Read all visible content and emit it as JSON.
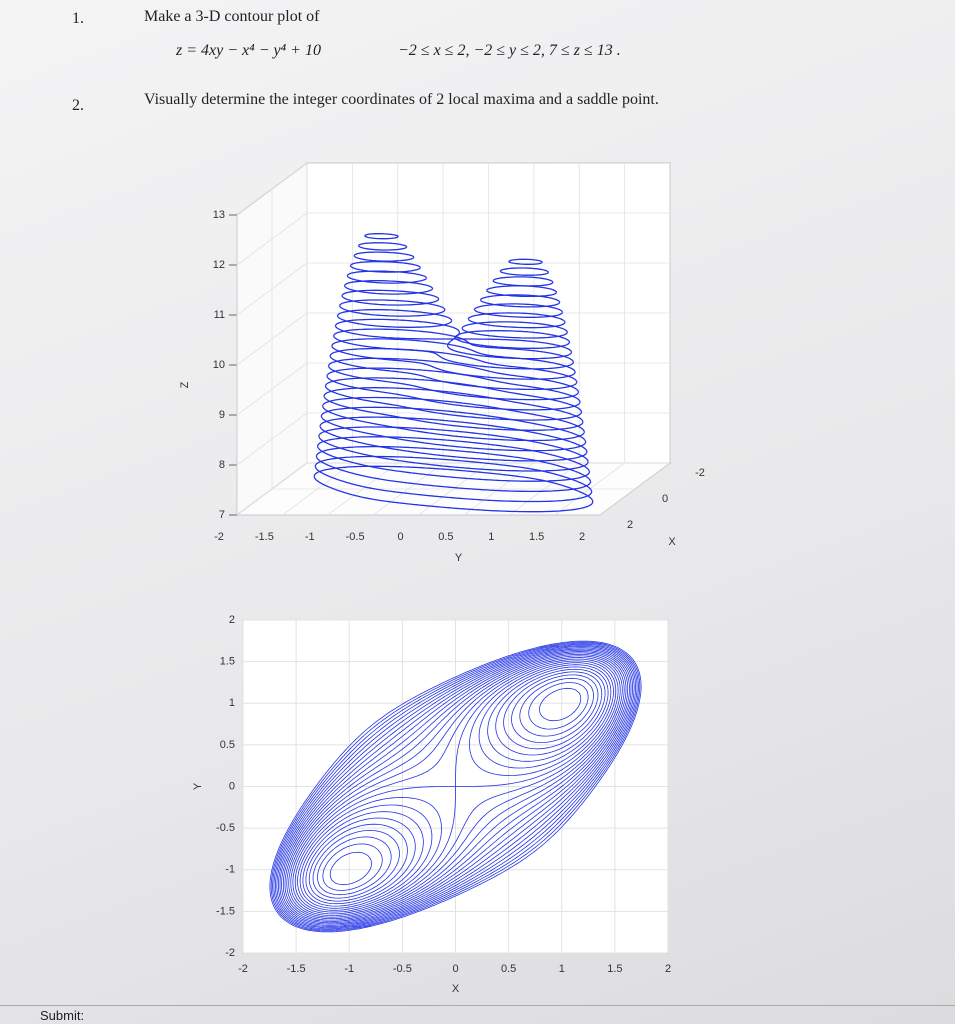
{
  "problems": [
    {
      "number": "1.",
      "text": "Make a 3-D contour plot of",
      "equation": "z = 4xy − x⁴ − y⁴ + 10",
      "domain": "−2 ≤ x ≤ 2, −2 ≤ y ≤ 2, 7 ≤ z ≤ 13 ."
    },
    {
      "number": "2.",
      "text": "Visually determine the integer coordinates of 2 local maxima and a saddle point."
    }
  ],
  "charts": [
    {
      "type": "contour3d",
      "color": "#2233e6",
      "levels": [
        7,
        7.2,
        7.4,
        7.6,
        7.8,
        8,
        8.2,
        8.4,
        8.6,
        8.8,
        9,
        9.2,
        9.4,
        9.6,
        9.8,
        10,
        10.2,
        10.4,
        10.6,
        10.8,
        11,
        11.2,
        11.4,
        11.6,
        11.8
      ],
      "xlim": [
        -2,
        2
      ],
      "ylim": [
        -2,
        2
      ],
      "zlim": [
        7,
        13
      ],
      "xticks": [
        -2,
        0,
        2
      ],
      "yticks": [
        -2,
        -1.5,
        -1,
        -0.5,
        0,
        0.5,
        1,
        1.5,
        2
      ],
      "zticks": [
        7,
        8,
        9,
        10,
        11,
        12,
        13
      ],
      "xlabel": "X",
      "ylabel": "Y",
      "zlabel": "Z"
    },
    {
      "type": "contour",
      "color": "#2233e6",
      "levels": [
        7,
        7.2,
        7.4,
        7.6,
        7.8,
        8,
        8.2,
        8.4,
        8.6,
        8.8,
        9,
        9.2,
        9.4,
        9.6,
        9.8,
        10,
        10.2,
        10.4,
        10.6,
        10.8,
        11,
        11.2,
        11.4,
        11.6,
        11.8
      ],
      "xlim": [
        -2,
        2
      ],
      "ylim": [
        -2,
        2
      ],
      "xticks": [
        -2,
        -1.5,
        -1,
        -0.5,
        0,
        0.5,
        1,
        1.5,
        2
      ],
      "yticks": [
        -2,
        -1.5,
        -1,
        -0.5,
        0,
        0.5,
        1,
        1.5,
        2
      ],
      "xlabel": "X",
      "ylabel": "Y"
    }
  ],
  "footer": "Submit:"
}
